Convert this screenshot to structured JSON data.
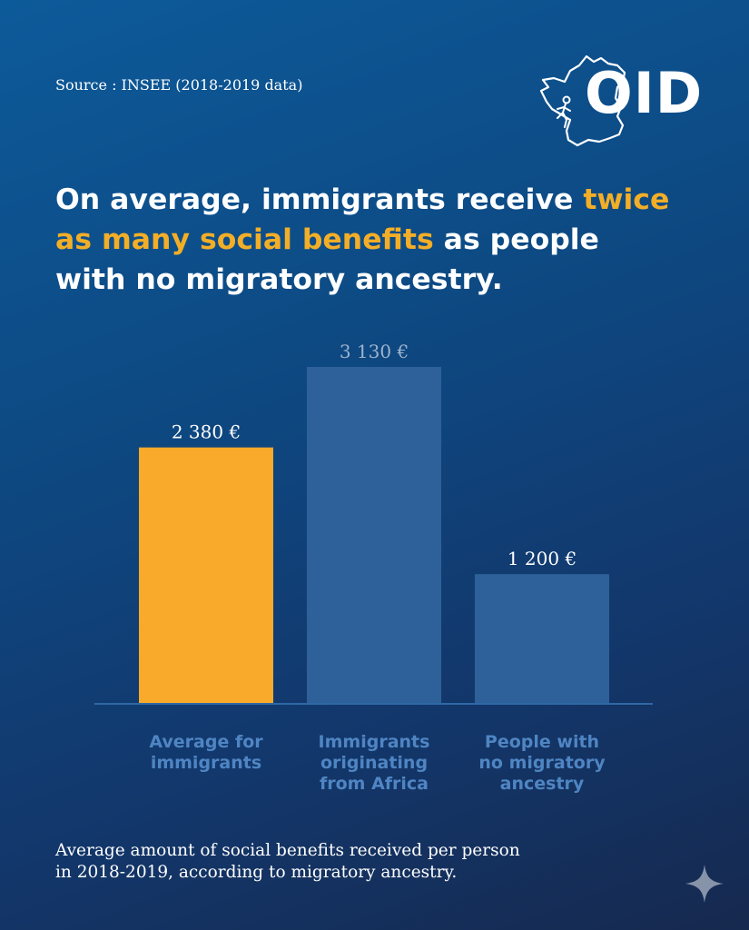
{
  "source": "Source : INSEE (2018-2019 data)",
  "logo": {
    "text": "OID"
  },
  "headline": {
    "part1": "On average, immigrants receive ",
    "highlight": "twice as many social benefits",
    "part2": " as people with no migratory ancestry."
  },
  "chart_data": {
    "type": "bar",
    "categories": [
      "Average for immigrants",
      "Immigrants originating from Africa",
      "People with no migratory ancestry"
    ],
    "values": [
      2380,
      3130,
      1200
    ],
    "value_labels": [
      "2 380 €",
      "3 130 €",
      "1 200 €"
    ],
    "unit": "€",
    "colors": [
      "#f9aa2a",
      "#2e6199",
      "#2e6199"
    ],
    "ylim": [
      0,
      3130
    ],
    "grid": false,
    "legend": "none"
  },
  "caption": "Average amount of social benefits received per person in 2018-2019, according to migratory ancestry.",
  "colors": {
    "accent": "#f3ae27",
    "category_label": "#4f85c3",
    "bar": "#2e6199"
  }
}
